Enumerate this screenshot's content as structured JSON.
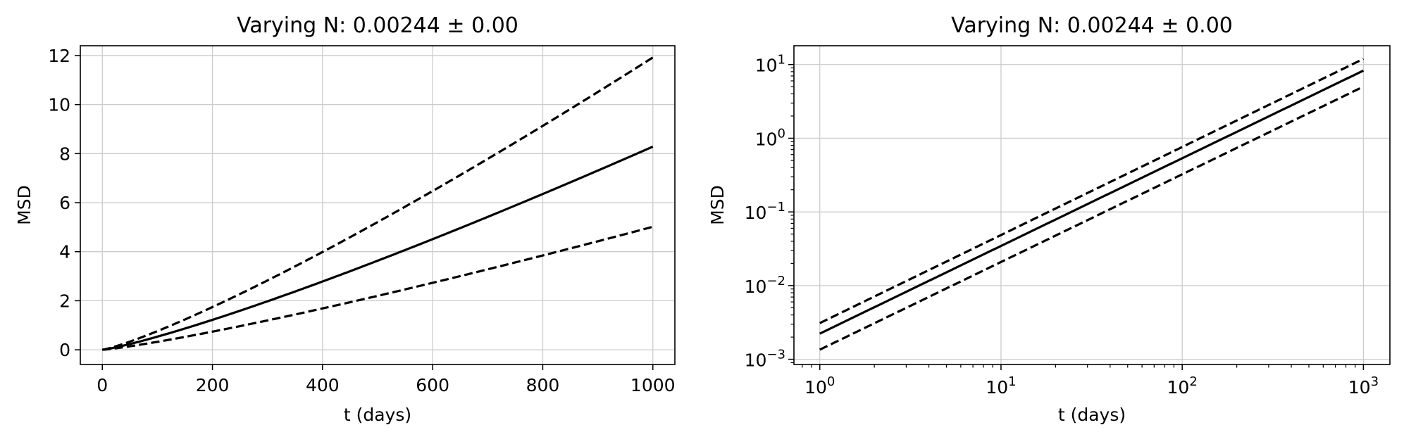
{
  "chart_data": [
    {
      "type": "line",
      "title": "Varying N: 0.00244 ± 0.00",
      "xlabel": "t (days)",
      "ylabel": "MSD",
      "xscale": "linear",
      "yscale": "linear",
      "xlim": [
        -40,
        1040
      ],
      "ylim": [
        -0.6,
        12.4
      ],
      "xticks": [
        0,
        200,
        400,
        600,
        800,
        1000
      ],
      "xtick_labels": [
        "0",
        "200",
        "400",
        "600",
        "800",
        "1000"
      ],
      "yticks": [
        0,
        2,
        4,
        6,
        8,
        10,
        12
      ],
      "ytick_labels": [
        "0",
        "2",
        "4",
        "6",
        "8",
        "10",
        "12"
      ],
      "grid": true,
      "legend": false,
      "line_color": "#000000",
      "grid_color": "#cccccc",
      "series": [
        {
          "style": "solid",
          "coef": 0.00223,
          "power": 1.19
        },
        {
          "style": "dashed",
          "coef": 0.0031,
          "power": 1.195
        },
        {
          "style": "dashed",
          "coef": 0.00135,
          "power": 1.19
        }
      ],
      "x": [
        0,
        1000
      ]
    },
    {
      "type": "line",
      "title": "Varying N: 0.00244 ± 0.00",
      "xlabel": "t (days)",
      "ylabel": "MSD",
      "xscale": "log",
      "yscale": "log",
      "xlim": [
        0.72,
        1400
      ],
      "ylim": [
        0.00085,
        18
      ],
      "xticks": [
        1,
        10,
        100,
        1000
      ],
      "xtick_labels": [
        [
          "10",
          "0"
        ],
        [
          "10",
          "1"
        ],
        [
          "10",
          "2"
        ],
        [
          "10",
          "3"
        ]
      ],
      "yticks": [
        0.001,
        0.01,
        0.1,
        1,
        10
      ],
      "ytick_labels": [
        [
          "10",
          "−3"
        ],
        [
          "10",
          "−2"
        ],
        [
          "10",
          "−1"
        ],
        [
          "10",
          "0"
        ],
        [
          "10",
          "1"
        ]
      ],
      "grid": true,
      "legend": false,
      "line_color": "#000000",
      "grid_color": "#cccccc",
      "series": [
        {
          "style": "solid",
          "coef": 0.00223,
          "power": 1.19
        },
        {
          "style": "dashed",
          "coef": 0.0031,
          "power": 1.195
        },
        {
          "style": "dashed",
          "coef": 0.00135,
          "power": 1.19
        }
      ],
      "x": [
        1,
        1000
      ]
    }
  ]
}
